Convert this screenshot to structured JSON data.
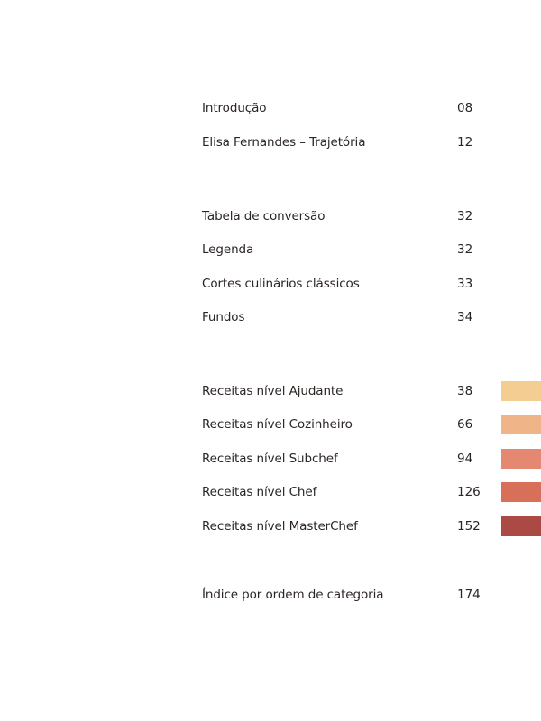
{
  "toc": {
    "intro": {
      "label": "Introdução",
      "page": "08"
    },
    "trajectory": {
      "label": "Elisa Fernandes – Trajetória",
      "page": "12"
    },
    "conversion": {
      "label": "Tabela de conversão",
      "page": "32"
    },
    "legend": {
      "label": "Legenda",
      "page": "32"
    },
    "cuts": {
      "label": "Cortes culinários clássicos",
      "page": "33"
    },
    "stocks": {
      "label": "Fundos",
      "page": "34"
    },
    "levels": [
      {
        "label": "Receitas nível Ajudante",
        "page": "38",
        "color": "#f4cd92"
      },
      {
        "label": "Receitas nível Cozinheiro",
        "page": "66",
        "color": "#efb488"
      },
      {
        "label": "Receitas nível Subchef",
        "page": "94",
        "color": "#e48871"
      },
      {
        "label": "Receitas nível Chef",
        "page": "126",
        "color": "#d86f58"
      },
      {
        "label": "Receitas nível MasterChef",
        "page": "152",
        "color": "#ab4a44"
      }
    ],
    "index": {
      "label": "Índice por ordem de categoria",
      "page": "174"
    }
  }
}
